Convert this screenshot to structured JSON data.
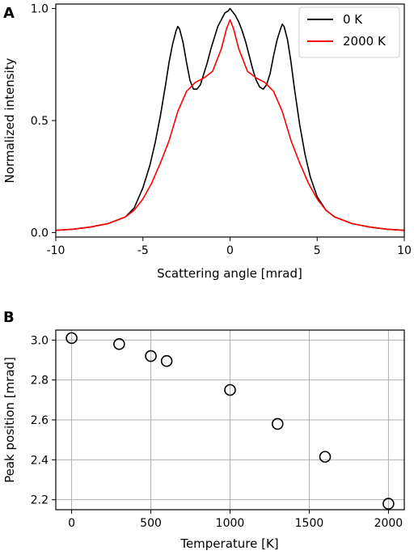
{
  "chart_data": [
    {
      "panel": "A",
      "type": "line",
      "xlabel": "Scattering angle [mrad]",
      "ylabel": "Normalized intensity",
      "xlim": [
        -10,
        10
      ],
      "ylim": [
        -0.02,
        1.02
      ],
      "xticks": [
        -10,
        -5,
        0,
        5,
        10
      ],
      "yticks": [
        0.0,
        0.5,
        1.0
      ],
      "grid": false,
      "legend": "top-right",
      "series": [
        {
          "name": "0 K",
          "color": "#000000",
          "x": [
            -10,
            -9,
            -8,
            -7,
            -6,
            -5.5,
            -5,
            -4.6,
            -4.3,
            -4,
            -3.7,
            -3.5,
            -3.3,
            -3.1,
            -3.0,
            -2.9,
            -2.7,
            -2.5,
            -2.3,
            -2.1,
            -1.9,
            -1.7,
            -1.5,
            -1.3,
            -1.1,
            -0.9,
            -0.7,
            -0.5,
            -0.3,
            -0.1,
            0,
            0.1,
            0.3,
            0.5,
            0.7,
            0.9,
            1.1,
            1.3,
            1.5,
            1.7,
            1.9,
            2.1,
            2.3,
            2.5,
            2.7,
            2.9,
            3.0,
            3.1,
            3.3,
            3.5,
            3.7,
            4.0,
            4.3,
            4.6,
            5,
            5.5,
            6,
            7,
            8,
            9,
            10
          ],
          "y": [
            0.01,
            0.015,
            0.025,
            0.04,
            0.07,
            0.11,
            0.2,
            0.3,
            0.4,
            0.52,
            0.66,
            0.76,
            0.84,
            0.9,
            0.92,
            0.91,
            0.85,
            0.76,
            0.68,
            0.64,
            0.64,
            0.66,
            0.71,
            0.76,
            0.82,
            0.87,
            0.92,
            0.95,
            0.98,
            0.99,
            1.0,
            0.99,
            0.97,
            0.94,
            0.9,
            0.85,
            0.79,
            0.73,
            0.68,
            0.65,
            0.64,
            0.66,
            0.71,
            0.79,
            0.86,
            0.91,
            0.93,
            0.92,
            0.86,
            0.76,
            0.64,
            0.48,
            0.35,
            0.25,
            0.16,
            0.1,
            0.07,
            0.04,
            0.025,
            0.015,
            0.01
          ]
        },
        {
          "name": "2000 K",
          "color": "#ff0000",
          "x": [
            -10,
            -9,
            -8,
            -7,
            -6,
            -5.5,
            -5,
            -4.5,
            -4,
            -3.5,
            -3,
            -2.5,
            -2,
            -1.5,
            -1,
            -0.5,
            -0.2,
            0,
            0.2,
            0.5,
            1,
            1.5,
            2,
            2.5,
            3,
            3.5,
            4,
            4.5,
            5,
            5.5,
            6,
            7,
            8,
            9,
            10
          ],
          "y": [
            0.01,
            0.015,
            0.025,
            0.04,
            0.07,
            0.1,
            0.15,
            0.22,
            0.31,
            0.41,
            0.54,
            0.63,
            0.67,
            0.69,
            0.72,
            0.82,
            0.91,
            0.95,
            0.91,
            0.82,
            0.72,
            0.69,
            0.67,
            0.63,
            0.54,
            0.41,
            0.31,
            0.22,
            0.15,
            0.1,
            0.07,
            0.04,
            0.025,
            0.015,
            0.01
          ]
        }
      ]
    },
    {
      "panel": "B",
      "type": "scatter",
      "xlabel": "Temperature [K]",
      "ylabel": "Peak position [mrad]",
      "xlim": [
        -100,
        2100
      ],
      "ylim": [
        2.15,
        3.05
      ],
      "xticks": [
        0,
        500,
        1000,
        1500,
        2000
      ],
      "yticks": [
        2.2,
        2.4,
        2.6,
        2.8,
        3.0
      ],
      "grid": true,
      "points": {
        "x": [
          0,
          300,
          500,
          600,
          1000,
          1300,
          1600,
          2000
        ],
        "y": [
          3.01,
          2.98,
          2.92,
          2.895,
          2.75,
          2.58,
          2.415,
          2.18
        ]
      }
    }
  ],
  "panel_labels": {
    "a": "A",
    "b": "B"
  },
  "axis_text": {
    "a_xlabel": "Scattering angle [mrad]",
    "a_ylabel": "Normalized intensity",
    "b_xlabel": "Temperature [K]",
    "b_ylabel": "Peak position [mrad]"
  },
  "legend": {
    "item1": "0 K",
    "item2": "2000 K"
  },
  "tick_labels": {
    "a_x": [
      "-10",
      "-5",
      "0",
      "5",
      "10"
    ],
    "a_y": [
      "0.0",
      "0.5",
      "1.0"
    ],
    "b_x": [
      "0",
      "500",
      "1000",
      "1500",
      "2000"
    ],
    "b_y": [
      "2.2",
      "2.4",
      "2.6",
      "2.8",
      "3.0"
    ]
  }
}
